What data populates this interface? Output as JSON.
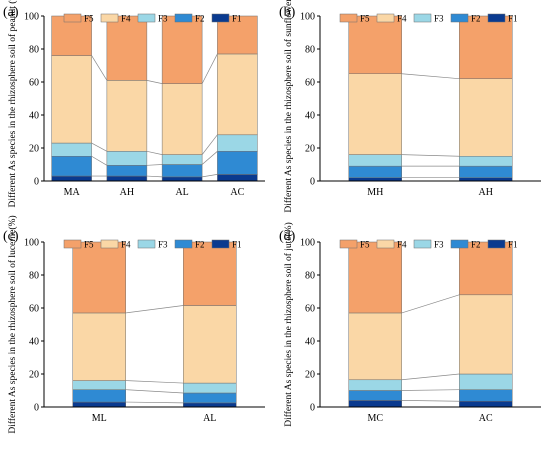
{
  "colors": {
    "F5": "#f4a16a",
    "F4": "#fad7a6",
    "F3": "#9bd7e6",
    "F2": "#2f8ad3",
    "F1": "#0a3a8f",
    "connector": "#8a8a8a"
  },
  "chart_data": [
    {
      "type": "bar",
      "stacked": true,
      "panel": "(a)",
      "ylabel": "Different As species in the rhizosphere soil of peanut (%)",
      "ylim": [
        0,
        100
      ],
      "yticks": [
        0,
        20,
        40,
        60,
        80,
        100
      ],
      "categories": [
        "MA",
        "AH",
        "AL",
        "AC"
      ],
      "legend": [
        "F5",
        "F4",
        "F3",
        "F2",
        "F1"
      ],
      "legend_position": "top",
      "grid": false,
      "series": [
        {
          "name": "F1",
          "values": [
            3,
            3,
            2.5,
            4
          ]
        },
        {
          "name": "F2",
          "values": [
            12,
            6.5,
            7.5,
            14
          ]
        },
        {
          "name": "F3",
          "values": [
            8,
            8.5,
            6,
            10
          ]
        },
        {
          "name": "F4",
          "values": [
            53,
            43,
            43,
            49
          ]
        },
        {
          "name": "F5",
          "values": [
            24,
            39,
            41,
            23
          ]
        }
      ]
    },
    {
      "type": "bar",
      "stacked": true,
      "panel": "(b)",
      "ylabel": "Different As species in the rhizosphere soil of sunflower(%)",
      "ylim": [
        0,
        100
      ],
      "yticks": [
        0,
        20,
        40,
        60,
        80,
        100
      ],
      "categories": [
        "MH",
        "AH"
      ],
      "legend": [
        "F5",
        "F4",
        "F3",
        "F2",
        "F1"
      ],
      "legend_position": "top",
      "grid": false,
      "series": [
        {
          "name": "F1",
          "values": [
            2,
            2
          ]
        },
        {
          "name": "F2",
          "values": [
            7,
            7
          ]
        },
        {
          "name": "F3",
          "values": [
            7,
            6
          ]
        },
        {
          "name": "F4",
          "values": [
            49,
            47
          ]
        },
        {
          "name": "F5",
          "values": [
            35,
            38
          ]
        }
      ]
    },
    {
      "type": "bar",
      "stacked": true,
      "panel": "(c)",
      "ylabel": "Different As species in the rhizosphere soil of lucerne(%)",
      "ylim": [
        0,
        100
      ],
      "yticks": [
        0,
        20,
        40,
        60,
        80,
        100
      ],
      "categories": [
        "ML",
        "AL"
      ],
      "legend": [
        "F5",
        "F4",
        "F3",
        "F2",
        "F1"
      ],
      "legend_position": "top",
      "grid": false,
      "series": [
        {
          "name": "F1",
          "values": [
            3,
            2.5
          ]
        },
        {
          "name": "F2",
          "values": [
            7.5,
            6
          ]
        },
        {
          "name": "F3",
          "values": [
            5.5,
            6
          ]
        },
        {
          "name": "F4",
          "values": [
            41,
            47
          ]
        },
        {
          "name": "F5",
          "values": [
            43,
            38.5
          ]
        }
      ]
    },
    {
      "type": "bar",
      "stacked": true,
      "panel": "(d)",
      "ylabel": "Different As species in the rhizosphere soil of jute(%)",
      "ylim": [
        0,
        100
      ],
      "yticks": [
        0,
        20,
        40,
        60,
        80,
        100
      ],
      "categories": [
        "MC",
        "AC"
      ],
      "legend": [
        "F5",
        "F4",
        "F3",
        "F2",
        "F1"
      ],
      "legend_position": "top",
      "grid": false,
      "series": [
        {
          "name": "F1",
          "values": [
            4,
            3.5
          ]
        },
        {
          "name": "F2",
          "values": [
            6,
            7
          ]
        },
        {
          "name": "F3",
          "values": [
            6.5,
            9.5
          ]
        },
        {
          "name": "F4",
          "values": [
            40.5,
            48
          ]
        },
        {
          "name": "F5",
          "values": [
            43,
            32
          ]
        }
      ]
    }
  ]
}
